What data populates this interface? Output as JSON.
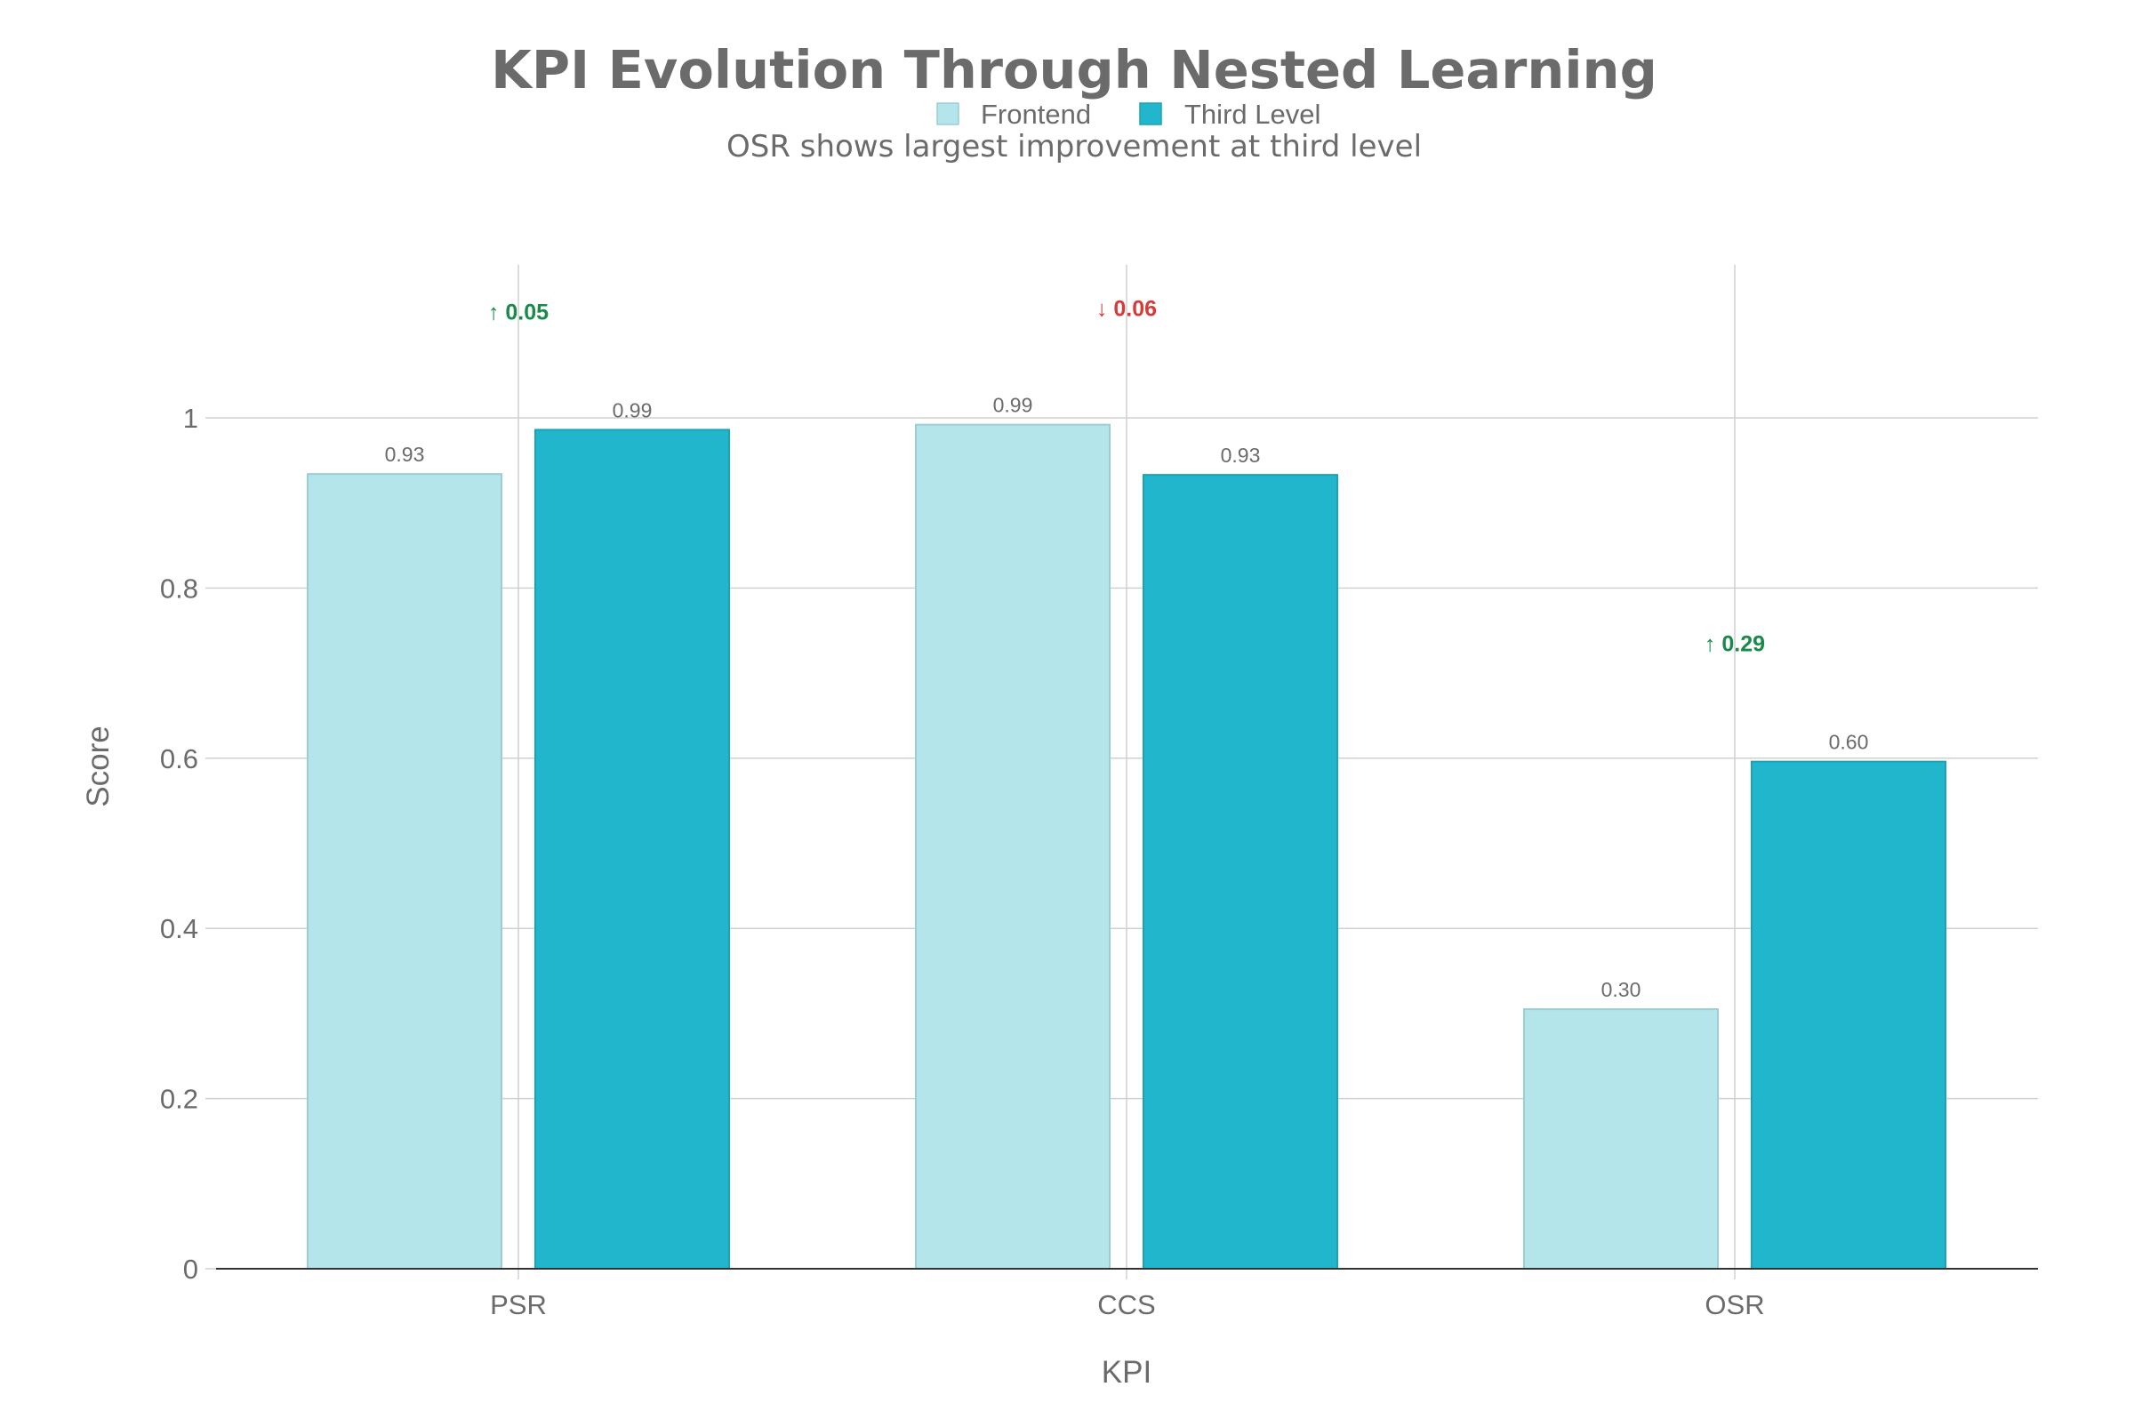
{
  "chart_data": {
    "type": "bar",
    "title": "KPI Evolution Through Nested Learning",
    "subtitle": "OSR shows largest improvement at third level",
    "xlabel": "KPI",
    "ylabel": "Score",
    "ylim": [
      0,
      1.18
    ],
    "yticks": [
      0,
      0.2,
      0.4,
      0.6,
      0.8,
      1
    ],
    "ytick_labels": [
      "0",
      "0.2",
      "0.4",
      "0.6",
      "0.8",
      "1"
    ],
    "categories": [
      "PSR",
      "CCS",
      "OSR"
    ],
    "grid": true,
    "legend_position": "top-center",
    "series": [
      {
        "name": "Frontend",
        "values": [
          0.934,
          0.992,
          0.305
        ],
        "labels": [
          "0.93",
          "0.99",
          "0.30"
        ],
        "color": "#b3e5ea",
        "border": "#9ccdd3"
      },
      {
        "name": "Third Level",
        "values": [
          0.986,
          0.933,
          0.596
        ],
        "labels": [
          "0.99",
          "0.93",
          "0.60"
        ],
        "color": "#21b6cc",
        "border": "#1aa3b8"
      }
    ],
    "annotations": [
      {
        "category": "PSR",
        "text": "↑ 0.05",
        "y": 1.125,
        "color": "#1a8a4a"
      },
      {
        "category": "CCS",
        "text": "↓ 0.06",
        "y": 1.129,
        "color": "#d63b3b"
      },
      {
        "category": "OSR",
        "text": "↑ 0.29",
        "y": 0.735,
        "color": "#1a8a4a"
      }
    ]
  },
  "colors": {
    "text": "#6b6b6b",
    "grid": "#d0d0d0",
    "axis": "#333333"
  }
}
